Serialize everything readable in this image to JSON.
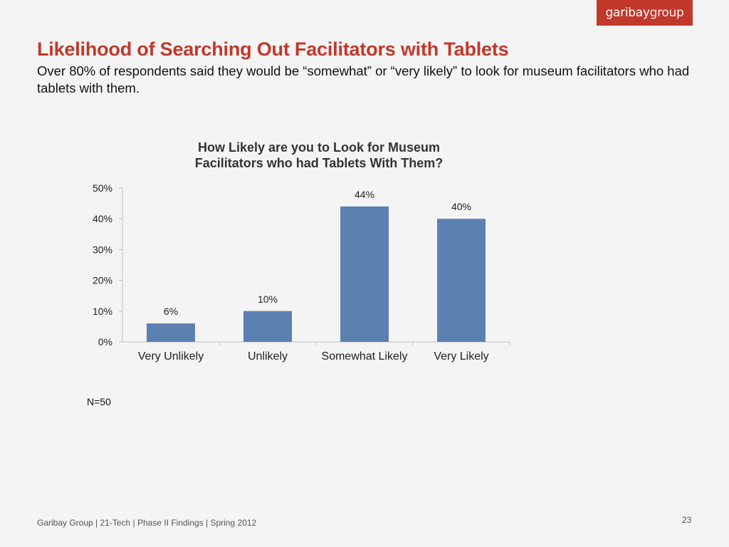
{
  "logo": {
    "brand_bold": "garibay",
    "brand_light": "group"
  },
  "slide": {
    "title": "Likelihood of Searching Out Facilitators with Tablets",
    "subtitle": "Over 80% of respondents said they would be “somewhat” or “very likely” to look for museum facilitators who had tablets with them."
  },
  "chart_data": {
    "type": "bar",
    "title": "How Likely are you to Look for Museum Facilitators who had Tablets With Them?",
    "title_lines": [
      "How Likely are you to Look for Museum",
      "Facilitators who had Tablets With Them?"
    ],
    "categories": [
      "Very Unlikely",
      "Unlikely",
      "Somewhat Likely",
      "Very Likely"
    ],
    "values": [
      6,
      10,
      44,
      40
    ],
    "data_labels": [
      "6%",
      "10%",
      "44%",
      "40%"
    ],
    "y_ticks": [
      "0%",
      "10%",
      "20%",
      "30%",
      "40%",
      "50%"
    ],
    "ylim": [
      0,
      50
    ],
    "xlabel": "",
    "ylabel": "",
    "grid": false,
    "legend": "none",
    "bar_color": "#5b80b2"
  },
  "note": "N=50",
  "footer": {
    "text": "Garibay Group | 21-Tech | Phase II Findings | Spring 2012",
    "page_number": "23"
  }
}
